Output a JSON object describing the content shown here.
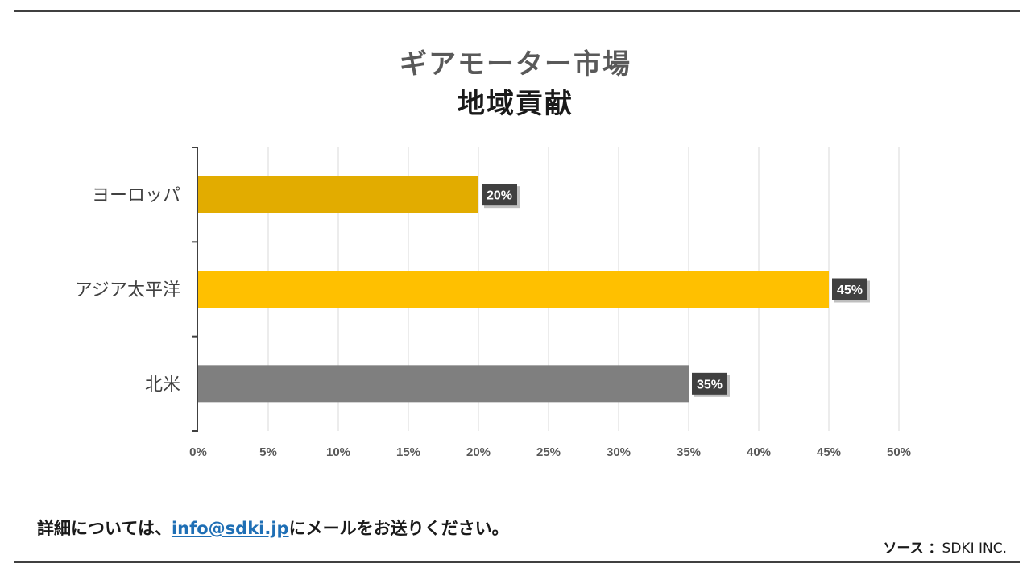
{
  "title": {
    "main": "ギアモーター市場",
    "sub": "地域貢献"
  },
  "footer": {
    "prefix": "詳細については、",
    "email": "info@sdki.jp",
    "suffix": "にメールをお送りください。"
  },
  "source": {
    "label": "ソース ：",
    "value": "SDKI INC."
  },
  "colors": {
    "europe": "#E2AC00",
    "asia_pacific": "#FFC000",
    "north_america": "#7F7F7F",
    "label_bg": "#404040",
    "grid": "#d9d9d9",
    "axis": "#404040"
  },
  "chart_data": {
    "type": "bar",
    "orientation": "horizontal",
    "title": "ギアモーター市場 地域貢献",
    "categories": [
      "ヨーロッパ",
      "アジア太平洋",
      "北米"
    ],
    "values": [
      20,
      45,
      35
    ],
    "data_labels": [
      "20%",
      "45%",
      "35%"
    ],
    "xlim": [
      0,
      50
    ],
    "x_ticks": [
      0,
      5,
      10,
      15,
      20,
      25,
      30,
      35,
      40,
      45,
      50
    ],
    "x_tick_labels": [
      "0%",
      "5%",
      "10%",
      "15%",
      "20%",
      "25%",
      "30%",
      "35%",
      "40%",
      "45%",
      "50%"
    ],
    "grid": true,
    "legend": "none"
  }
}
